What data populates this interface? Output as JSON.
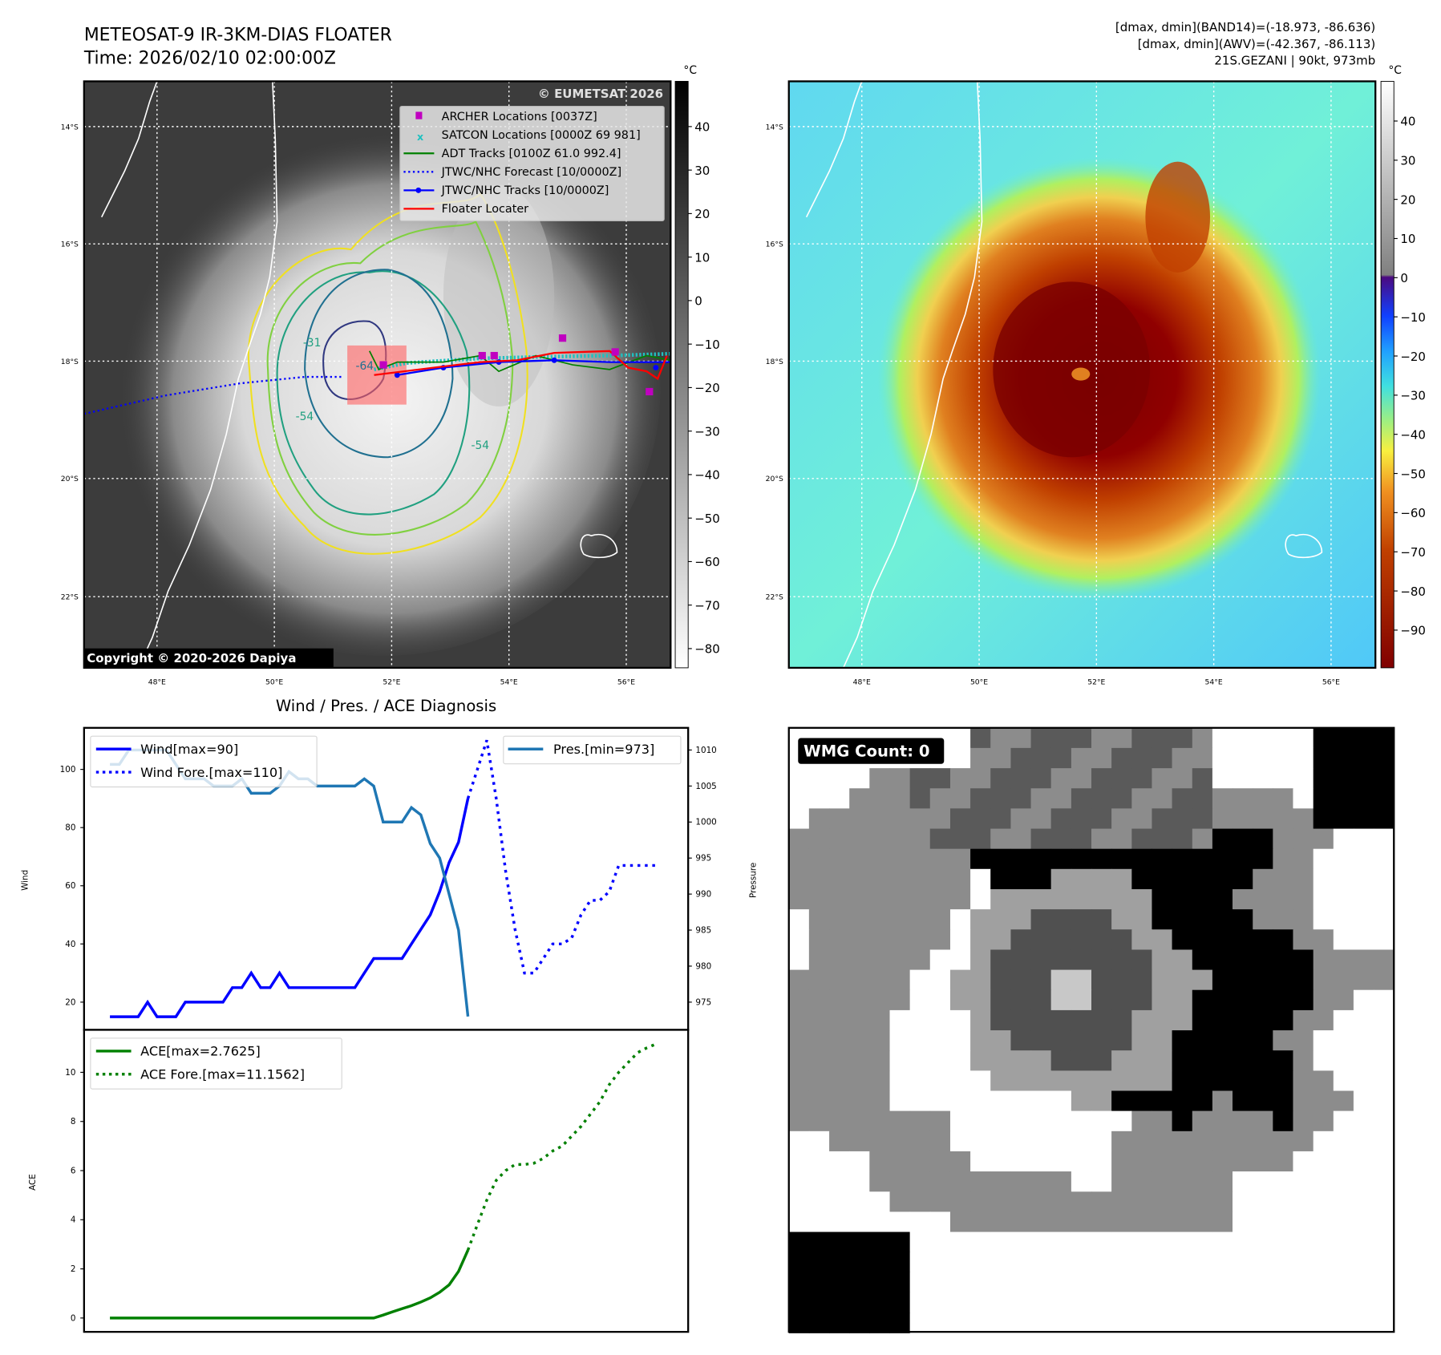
{
  "header": {
    "title": "METEOSAT-9 IR-3KM-DIAS FLOATER",
    "time": "Time: 2026/02/10 02:00:00Z",
    "stats_line1": "[dmax, dmin](BAND14)=(-18.973, -86.636)",
    "stats_line2": "[dmax, dmin](AWV)=(-42.367, -86.113)",
    "storm_line": "21S.GEZANI | 90kt, 973mb"
  },
  "maps": {
    "lat_labels": [
      "14°S",
      "16°S",
      "18°S",
      "20°S",
      "22°S"
    ],
    "lon_labels": [
      "48°E",
      "50°E",
      "52°E",
      "54°E",
      "56°E"
    ],
    "unit": "°C",
    "copyright": "Copyright © 2020-2026 Dapiya",
    "watermark": "© EUMETSAT 2026",
    "contour_labels": [
      "-31",
      "-54",
      "-64",
      "-54"
    ],
    "left_colorbar_ticks": [
      "40",
      "30",
      "20",
      "10",
      "0",
      "−10",
      "−20",
      "−30",
      "−40",
      "−50",
      "−60",
      "−70",
      "−80"
    ],
    "right_colorbar_ticks": [
      "40",
      "30",
      "20",
      "10",
      "0",
      "−10",
      "−20",
      "−30",
      "−40",
      "−50",
      "−60",
      "−70",
      "−80",
      "−90"
    ],
    "legend": [
      {
        "label": "ARCHER Locations [0037Z]",
        "color": "#c000c0"
      },
      {
        "label": "SATCON Locations [0000Z 69 981]",
        "color": "#20c0c0"
      },
      {
        "label": "ADT Tracks [0100Z 61.0 992.4]",
        "color": "#008000"
      },
      {
        "label": "JTWC/NHC Forecast [10/0000Z]",
        "color": "#0000ff"
      },
      {
        "label": "JTWC/NHC Tracks [10/0000Z]",
        "color": "#0000ff"
      },
      {
        "label": "Floater Locater",
        "color": "#ff0000"
      }
    ]
  },
  "wmg": {
    "label": "WMG Count: 0"
  },
  "chart_data": [
    {
      "type": "line",
      "title": "Wind / Pres. / ACE Diagnosis",
      "ylabel": "Wind",
      "ylabel_right": "Pressure",
      "ylim": [
        10,
        113
      ],
      "ylim_right": [
        971,
        1013
      ],
      "yticks": [
        20,
        40,
        60,
        80,
        100
      ],
      "yticks_right": [
        975,
        980,
        985,
        990,
        995,
        1000,
        1005,
        1010
      ],
      "series": [
        {
          "name": "Wind[max=90]",
          "color": "#0000ff",
          "style": "solid",
          "start": 0,
          "values": [
            15,
            15,
            15,
            15,
            20,
            15,
            15,
            15,
            20,
            20,
            20,
            20,
            20,
            25,
            25,
            30,
            25,
            25,
            30,
            25,
            25,
            25,
            25,
            25,
            25,
            25,
            25,
            30,
            35,
            35,
            35,
            35,
            40,
            45,
            50,
            58,
            68,
            75,
            90
          ]
        },
        {
          "name": "Wind Fore.[max=110]",
          "color": "#0000ff",
          "style": "dotted",
          "start": 38,
          "values": [
            90,
            100,
            110,
            90,
            65,
            45,
            30,
            30,
            35,
            40,
            40,
            42,
            50,
            55,
            55,
            58,
            67,
            67,
            67,
            67,
            67
          ]
        },
        {
          "name": "Pres.[min=973]",
          "color": "#1f77b4",
          "style": "solid",
          "axis": "right",
          "start": 0,
          "values": [
            1008,
            1008,
            1010,
            1010,
            1010,
            1010,
            1010,
            1008,
            1006,
            1006,
            1006,
            1005,
            1005,
            1005,
            1006,
            1004,
            1004,
            1004,
            1005,
            1007,
            1006,
            1006,
            1005,
            1005,
            1005,
            1005,
            1005,
            1006,
            1005,
            1000,
            1000,
            1000,
            1002,
            1001,
            997,
            995,
            990,
            985,
            973
          ]
        }
      ]
    },
    {
      "type": "line",
      "ylabel": "ACE",
      "ylim": [
        -0.5,
        11.8
      ],
      "yticks": [
        0,
        2,
        4,
        6,
        8,
        10
      ],
      "series": [
        {
          "name": "ACE[max=2.7625]",
          "color": "#008000",
          "style": "solid",
          "start": 0,
          "values": [
            0,
            0,
            0,
            0,
            0,
            0,
            0,
            0,
            0,
            0,
            0,
            0,
            0,
            0,
            0,
            0,
            0,
            0,
            0,
            0,
            0,
            0,
            0,
            0,
            0,
            0,
            0,
            0,
            0,
            0.12,
            0.25,
            0.38,
            0.5,
            0.65,
            0.82,
            1.05,
            1.35,
            1.9,
            2.7625
          ]
        },
        {
          "name": "ACE Fore.[max=11.1562]",
          "color": "#008000",
          "style": "dotted",
          "start": 38,
          "values": [
            2.7625,
            3.8,
            4.8,
            5.6,
            6.0,
            6.25,
            6.25,
            6.3,
            6.5,
            6.8,
            7.0,
            7.4,
            7.8,
            8.3,
            8.8,
            9.5,
            10.0,
            10.4,
            10.8,
            11.0,
            11.1562
          ]
        }
      ]
    }
  ]
}
